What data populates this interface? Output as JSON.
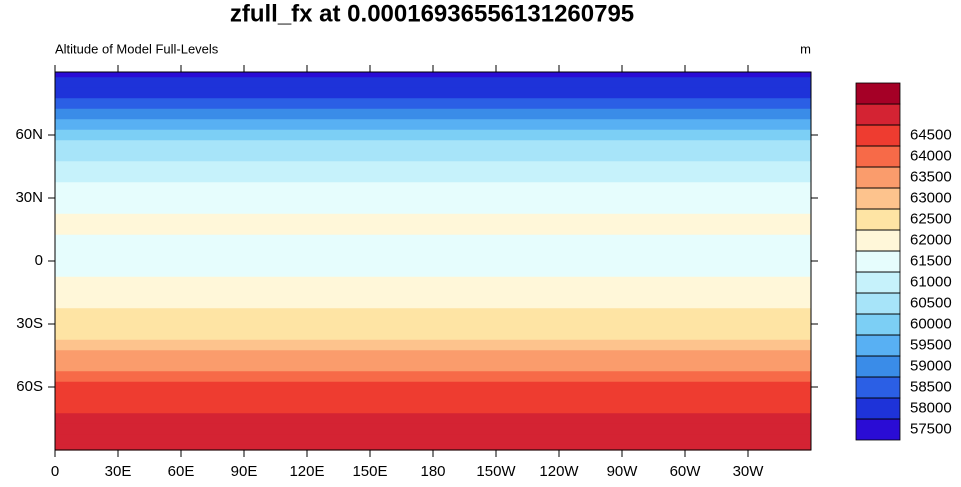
{
  "chart_data": {
    "type": "contour-map",
    "title": "zfull_fx at 0.00016936556131260795",
    "subtitle_left": "Altitude of Model Full-Levels",
    "subtitle_right": "m",
    "xlim": [
      0,
      360
    ],
    "ylim": [
      -90,
      90
    ],
    "xticks": [
      0,
      {
        "value": 30,
        "label": "30E"
      },
      {
        "value": 60,
        "label": "60E"
      },
      {
        "value": 90,
        "label": "90E"
      },
      {
        "value": 120,
        "label": "120E"
      },
      {
        "value": 150,
        "label": "150E"
      },
      180,
      {
        "value": 210,
        "label": "150W"
      },
      {
        "value": 240,
        "label": "120W"
      },
      {
        "value": 270,
        "label": "90W"
      },
      {
        "value": 300,
        "label": "60W"
      },
      {
        "value": 330,
        "label": "30W"
      }
    ],
    "yticks": [
      {
        "value": -60,
        "label": "60S"
      },
      {
        "value": -30,
        "label": "30S"
      },
      0,
      {
        "value": 30,
        "label": "30N"
      },
      {
        "value": 60,
        "label": "60N"
      }
    ],
    "levels": [
      57500,
      58000,
      58500,
      59000,
      59500,
      60000,
      60500,
      61000,
      61500,
      62000,
      62500,
      63000,
      63500,
      64000,
      64500
    ],
    "colors": [
      "#2a0cd5",
      "#1e33d9",
      "#2b5fe5",
      "#3a8ce8",
      "#58b0f3",
      "#7ccff5",
      "#a7e4f9",
      "#c6f2fb",
      "#e6fdfd",
      "#fff7d9",
      "#fee4a4",
      "#fdc38d",
      "#fa9c6c",
      "#f76a48",
      "#ee3c30",
      "#d42333",
      "#a50026"
    ],
    "field": {
      "lat": [
        90,
        85,
        80,
        75,
        70,
        65,
        60,
        55,
        50,
        45,
        40,
        35,
        30,
        25,
        20,
        15,
        10,
        5,
        0,
        -5,
        -10,
        -15,
        -20,
        -25,
        -30,
        -35,
        -40,
        -45,
        -50,
        -55,
        -60,
        -65,
        -70,
        -75,
        -80,
        -85,
        -90
      ],
      "values": [
        57300,
        57600,
        57900,
        58400,
        58900,
        59300,
        59700,
        60000,
        60300,
        60600,
        60800,
        61000,
        61200,
        61400,
        61500,
        61500,
        61400,
        61300,
        61300,
        61400,
        61600,
        61700,
        61900,
        62000,
        62200,
        62400,
        62700,
        63000,
        63300,
        63700,
        64000,
        64200,
        64400,
        64600,
        64700,
        64800,
        64800
      ]
    }
  }
}
